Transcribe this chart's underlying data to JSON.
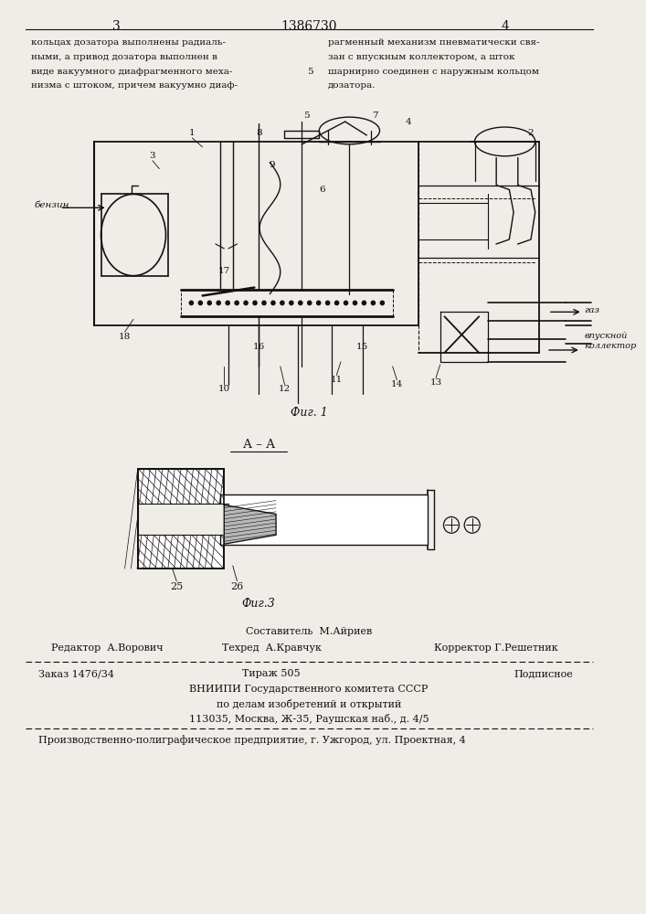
{
  "bg_color": "#f0ede8",
  "page_width": 7.07,
  "page_height": 10.0,
  "header_page_numbers": [
    "3",
    "4"
  ],
  "patent_number": "1386730",
  "col1_text_lines": [
    "кольцах дозатора выполнены радиаль-",
    "ными, а привод дозатора выполнен в",
    "виде вакуумного диафрагменного меха-",
    "низма с штоком, причем вакуумно диаф-"
  ],
  "col2_text_lines": [
    "рагменный механизм пневматически свя-",
    "зан с впускным коллектором, а шток",
    "шарнирно соединен с наружным кольцом",
    "дозатора."
  ],
  "col_gutter_label": "5",
  "fig1_caption": "Фиг. 1",
  "fig3_caption": "Фиг.3",
  "section_aa": "А – А",
  "footer_compiler": "Составитель  М.Айриев",
  "footer_editor": "Редактор  А.Ворович",
  "footer_techred": "Техред  А.Кравчук",
  "footer_corrector": "Корректор Г.Решетник",
  "footer_order": "Заказ 1476/34",
  "footer_tirazh": "Тираж 505",
  "footer_podpisnoe": "Подписное",
  "footer_vniipи": "ВНИИПИ Государственного комитета СССР",
  "footer_po": "по делам изобретений и открытий",
  "footer_addr": "113035, Москва, Ж-35, Раушская наб., д. 4/5",
  "footer_prod": "Производственно-полиграфическое предприятие, г. Ужгород, ул. Проектная, 4",
  "text_color": "#111111",
  "line_color": "#111111",
  "label_benzin": "бензин",
  "label_gaz": "газ",
  "label_vpusknoy": "впускной\nколлектор"
}
